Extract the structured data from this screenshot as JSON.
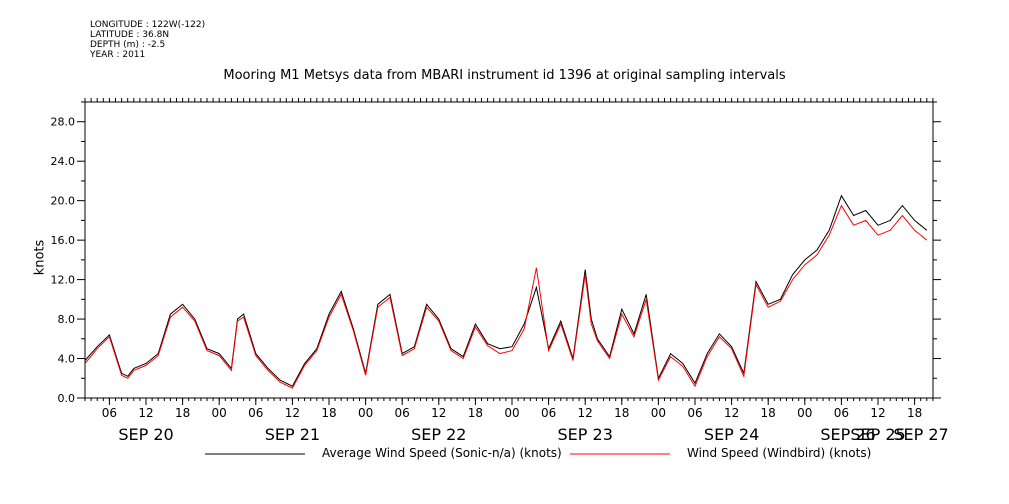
{
  "header": {
    "longitude": "LONGITUDE : 122W(-122)",
    "latitude": "LATITUDE : 36.8N",
    "depth": "DEPTH (m) : -2.5",
    "year": "YEAR : 2011"
  },
  "chart_data": {
    "type": "line",
    "title": "Mooring M1 Metsys data from MBARI instrument id 1396 at original sampling intervals",
    "xlabel": "",
    "ylabel": "knots",
    "ylim": [
      0,
      30
    ],
    "xlim_hours": [
      0,
      162
    ],
    "yticks": [
      0,
      4,
      8,
      12,
      16,
      20,
      24,
      28
    ],
    "ytick_labels": [
      "0.0",
      "4.0",
      "8.0",
      "12.0",
      "16.0",
      "20.0",
      "24.0",
      "28.0"
    ],
    "hour_ticks": [
      {
        "h": 6,
        "label": "06"
      },
      {
        "h": 12,
        "label": "12"
      },
      {
        "h": 18,
        "label": "18"
      },
      {
        "h": 24,
        "label": "00"
      },
      {
        "h": 30,
        "label": "06"
      },
      {
        "h": 36,
        "label": "12"
      },
      {
        "h": 42,
        "label": "18"
      },
      {
        "h": 48,
        "label": "00"
      },
      {
        "h": 54,
        "label": "06"
      },
      {
        "h": 60,
        "label": "12"
      },
      {
        "h": 66,
        "label": "18"
      },
      {
        "h": 72,
        "label": "00"
      },
      {
        "h": 78,
        "label": "06"
      },
      {
        "h": 84,
        "label": "12"
      },
      {
        "h": 90,
        "label": "18"
      },
      {
        "h": 96,
        "label": "00"
      },
      {
        "h": 102,
        "label": "06"
      },
      {
        "h": 108,
        "label": "12"
      },
      {
        "h": 114,
        "label": "18"
      },
      {
        "h": 120,
        "label": "00"
      },
      {
        "h": 126,
        "label": "06"
      },
      {
        "h": 132,
        "label": "12"
      },
      {
        "h": 138,
        "label": "18"
      },
      {
        "h": 144,
        "label": "00"
      },
      {
        "h": 150,
        "label": "06"
      },
      {
        "h": 156,
        "label": "12"
      },
      {
        "h": 162,
        "label": "18"
      }
    ],
    "day_labels": [
      {
        "h": 12,
        "label": "SEP 20"
      },
      {
        "h": 36,
        "label": "SEP 21"
      },
      {
        "h": 60,
        "label": "SEP 22"
      },
      {
        "h": 84,
        "label": "SEP 23"
      },
      {
        "h": 108,
        "label": "SEP 24"
      },
      {
        "h": 132,
        "label": "SEP 25"
      },
      {
        "h": 156,
        "label": "SEP 26"
      },
      {
        "h": 168,
        "label": "SEP 27"
      }
    ],
    "series": [
      {
        "name": "Average Wind Speed (Sonic-n/a) (knots)",
        "color": "#000000",
        "x": [
          0,
          1,
          2,
          4,
          6,
          8,
          9,
          10,
          12,
          14,
          16,
          18,
          20,
          22,
          24,
          26,
          27,
          28,
          30,
          32,
          34,
          36,
          38,
          40,
          42,
          44,
          46,
          48,
          50,
          52,
          54,
          56,
          58,
          60,
          62,
          64,
          66,
          68,
          70,
          72,
          74,
          76,
          78,
          80,
          82,
          84,
          85,
          86,
          88,
          90,
          92,
          94,
          96,
          98,
          100,
          102,
          104,
          106,
          108,
          110,
          112,
          114,
          116,
          118,
          120,
          122,
          124,
          126,
          128,
          130,
          132,
          134,
          136,
          138,
          140,
          142,
          144,
          146,
          148,
          150,
          152,
          154,
          156,
          158,
          158.5,
          159,
          160,
          161,
          162,
          163,
          164,
          165,
          166,
          167
        ],
        "y": [
          1.2,
          4.5,
          3.8,
          5.2,
          6.4,
          2.5,
          2.2,
          3.0,
          3.5,
          4.5,
          8.5,
          9.5,
          8.0,
          5.0,
          4.5,
          3.0,
          8.0,
          8.5,
          4.5,
          3.0,
          1.8,
          1.2,
          3.5,
          5.0,
          8.5,
          10.8,
          7.0,
          2.5,
          9.5,
          10.5,
          4.5,
          5.2,
          9.5,
          8.0,
          5.0,
          4.2,
          7.5,
          5.5,
          5.0,
          5.2,
          7.5,
          11.2,
          5.0,
          7.8,
          4.0,
          13.0,
          8.0,
          6.0,
          4.2,
          9.0,
          6.5,
          10.5,
          2.0,
          4.5,
          3.5,
          1.5,
          4.5,
          6.5,
          5.2,
          2.5,
          11.8,
          9.5,
          10.0,
          12.5,
          14.0,
          15.0,
          17.0,
          20.5,
          18.5,
          19.0,
          17.5,
          18.0,
          19.5,
          18.0,
          17.0,
          17.5,
          18.0,
          17.5,
          18.5,
          17.0,
          17.0,
          17.0,
          17.0,
          17.0,
          17.0,
          17.0,
          17.0,
          17.0,
          17.0,
          17.0,
          17.0,
          17.0,
          17.0,
          17.0
        ]
      },
      {
        "name": "Wind Speed (Windbird) (knots)",
        "color": "#ff0000",
        "x": [
          0,
          1,
          2,
          4,
          6,
          8,
          9,
          10,
          12,
          14,
          16,
          18,
          20,
          22,
          24,
          26,
          27,
          28,
          30,
          32,
          34,
          36,
          38,
          40,
          42,
          44,
          46,
          48,
          50,
          52,
          54,
          56,
          58,
          60,
          62,
          64,
          66,
          68,
          70,
          72,
          74,
          76,
          78,
          80,
          82,
          84,
          85,
          86,
          88,
          90,
          92,
          94,
          96,
          98,
          100,
          102,
          104,
          106,
          108,
          110,
          112,
          114,
          116,
          118,
          120,
          122,
          124,
          126,
          128,
          130,
          132,
          134,
          136,
          138,
          140,
          142,
          144,
          146,
          148,
          150,
          152,
          154,
          156,
          158,
          158.5,
          159,
          160,
          161,
          162,
          163,
          164,
          165,
          166,
          167
        ],
        "y": [
          1.0,
          4.2,
          3.5,
          5.0,
          6.2,
          2.3,
          2.0,
          2.8,
          3.3,
          4.3,
          8.2,
          9.2,
          7.8,
          4.8,
          4.3,
          2.8,
          7.8,
          8.2,
          4.3,
          2.8,
          1.6,
          1.0,
          3.3,
          4.8,
          8.2,
          10.5,
          6.8,
          2.3,
          9.2,
          10.2,
          4.3,
          5.0,
          9.2,
          7.8,
          4.8,
          4.0,
          7.2,
          5.3,
          4.5,
          4.8,
          7.0,
          13.2,
          4.8,
          7.5,
          3.8,
          12.5,
          7.5,
          5.8,
          4.0,
          8.5,
          6.2,
          10.0,
          1.8,
          4.2,
          3.2,
          1.2,
          4.2,
          6.2,
          5.0,
          2.2,
          11.5,
          9.2,
          9.8,
          12.0,
          13.5,
          14.5,
          16.5,
          19.5,
          17.5,
          18.0,
          16.5,
          17.0,
          18.5,
          17.0,
          16.0,
          16.5,
          17.0,
          16.5,
          17.5,
          16.0,
          16.0,
          16.0,
          16.0,
          16.0,
          16.0,
          16.0,
          16.0,
          16.0,
          16.0,
          16.0,
          16.0,
          16.0,
          16.0,
          16.0
        ]
      }
    ]
  }
}
